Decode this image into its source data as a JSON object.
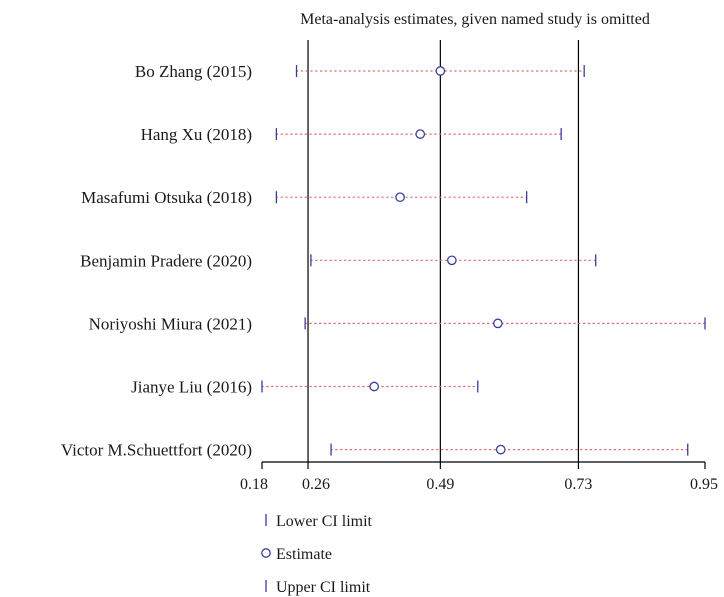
{
  "chart_data": {
    "type": "scatter",
    "title": "Meta-analysis estimates, given named study is omitted",
    "xlabel": "",
    "ylabel": "",
    "xlim": [
      0.18,
      0.95
    ],
    "x_ticks": [
      {
        "value": 0.18,
        "label": "0.18"
      },
      {
        "value": 0.26,
        "label": "0.26"
      },
      {
        "value": 0.49,
        "label": "0.49"
      },
      {
        "value": 0.73,
        "label": "0.73"
      },
      {
        "value": 0.95,
        "label": "0.95"
      }
    ],
    "reference_lines": [
      0.26,
      0.49,
      0.73
    ],
    "studies": [
      {
        "name": "Bo Zhang (2015)",
        "lower": 0.24,
        "estimate": 0.49,
        "upper": 0.74
      },
      {
        "name": "Hang Xu (2018)",
        "lower": 0.205,
        "estimate": 0.455,
        "upper": 0.7
      },
      {
        "name": "Masafumi Otsuka (2018)",
        "lower": 0.205,
        "estimate": 0.42,
        "upper": 0.64
      },
      {
        "name": "Benjamin Pradere (2020)",
        "lower": 0.265,
        "estimate": 0.51,
        "upper": 0.76
      },
      {
        "name": "Noriyoshi Miura (2021)",
        "lower": 0.255,
        "estimate": 0.59,
        "upper": 0.95
      },
      {
        "name": "Jianye Liu (2016)",
        "lower": 0.18,
        "estimate": 0.375,
        "upper": 0.555
      },
      {
        "name": "Victor M.Schuettfort (2020)",
        "lower": 0.3,
        "estimate": 0.595,
        "upper": 0.92
      }
    ],
    "legend": {
      "position": "bottom-left",
      "items": [
        {
          "label": "Lower CI limit",
          "marker": "tick"
        },
        {
          "label": "Estimate",
          "marker": "circle"
        },
        {
          "label": "Upper CI limit",
          "marker": "tick"
        }
      ]
    },
    "colors": {
      "marker": "#3b3b9e",
      "ci_line": "#e06666",
      "axis": "#000000",
      "text": "#1a1a1a"
    }
  }
}
